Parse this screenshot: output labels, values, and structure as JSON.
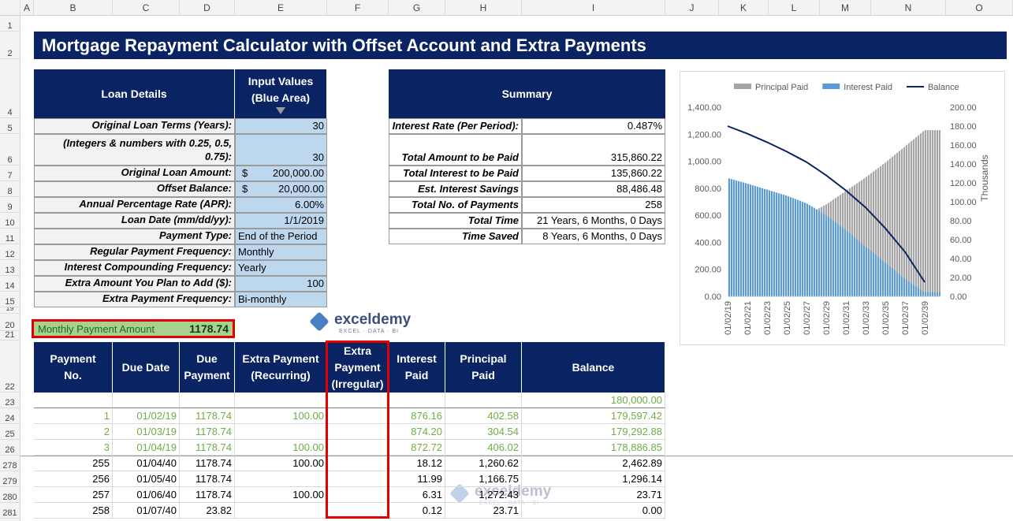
{
  "sheet": {
    "columns": [
      "A",
      "B",
      "C",
      "D",
      "E",
      "F",
      "G",
      "H",
      "I",
      "J",
      "K",
      "L",
      "M",
      "N",
      "O"
    ],
    "rows": [
      "1",
      "2",
      "4",
      "5",
      "6",
      "7",
      "8",
      "9",
      "10",
      "11",
      "12",
      "13",
      "14",
      "15",
      "19",
      "20",
      "21",
      "22",
      "23",
      "24",
      "25",
      "26",
      "278",
      "279",
      "280",
      "281"
    ]
  },
  "title": "Mortgage Repayment Calculator with Offset Account and Extra Payments",
  "loan_details": {
    "header": "Loan Details",
    "input_header": [
      "Input Values",
      "(Blue Area)"
    ],
    "rows": [
      {
        "label": "Original Loan Terms (Years):",
        "value": "30"
      },
      {
        "label": "(Integers & numbers with 0.25, 0.5, 0.75):",
        "value": "30"
      },
      {
        "label": "Original Loan Amount:",
        "currency": "$",
        "value": "200,000.00"
      },
      {
        "label": "Offset Balance:",
        "currency": "$",
        "value": "20,000.00"
      },
      {
        "label": "Annual Percentage Rate (APR):",
        "value": "6.00%"
      },
      {
        "label": "Loan Date (mm/dd/yy):",
        "value": "1/1/2019"
      },
      {
        "label": "Payment Type:",
        "value": "End of the Period"
      },
      {
        "label": "Regular Payment Frequency:",
        "value": "Monthly"
      },
      {
        "label": "Interest Compounding Frequency:",
        "value": "Yearly"
      },
      {
        "label": "Extra Amount You Plan to Add ($):",
        "value": "100"
      },
      {
        "label": "Extra Payment Frequency:",
        "value": "Bi-monthly"
      }
    ]
  },
  "summary": {
    "header": "Summary",
    "rows": [
      {
        "label": "Interest Rate (Per Period):",
        "value": "0.487%"
      },
      {
        "label": "Total Amount to be Paid",
        "value": "315,860.22"
      },
      {
        "label": "Total Interest to be Paid",
        "value": "135,860.22"
      },
      {
        "label": "Est. Interest Savings",
        "value": "88,486.48"
      },
      {
        "label": "Total No. of Payments",
        "value": "258"
      },
      {
        "label": "Total Time",
        "value": "21 Years, 6 Months, 0 Days"
      },
      {
        "label": "Time Saved",
        "value": "8 Years, 6 Months, 0 Days"
      }
    ]
  },
  "monthly_payment": {
    "label": "Monthly Payment Amount",
    "value": "1178.74"
  },
  "logo": {
    "name": "exceldemy",
    "tagline": "EXCEL · DATA · BI"
  },
  "payments": {
    "headers": [
      [
        "Payment",
        "No."
      ],
      [
        "Due Date"
      ],
      [
        "Due",
        "Payment"
      ],
      [
        "Extra Payment",
        "(Recurring)"
      ],
      [
        "Extra",
        "Payment",
        "(Irregular)"
      ],
      [
        "Interest",
        "Paid"
      ],
      [
        "Principal",
        "Paid"
      ],
      [
        "Balance"
      ]
    ],
    "rows": [
      [
        null,
        null,
        null,
        null,
        null,
        null,
        null,
        "180,000.00"
      ],
      [
        "1",
        "01/02/19",
        "1178.74",
        "100.00",
        null,
        "876.16",
        "402.58",
        "179,597.42"
      ],
      [
        "2",
        "01/03/19",
        "1178.74",
        null,
        null,
        "874.20",
        "304.54",
        "179,292.88"
      ],
      [
        "3",
        "01/04/19",
        "1178.74",
        "100.00",
        null,
        "872.72",
        "406.02",
        "178,886.85"
      ],
      [
        "255",
        "01/04/40",
        "1178.74",
        "100.00",
        null,
        "18.12",
        "1,260.62",
        "2,462.89"
      ],
      [
        "256",
        "01/05/40",
        "1178.74",
        null,
        null,
        "11.99",
        "1,166.75",
        "1,296.14"
      ],
      [
        "257",
        "01/06/40",
        "1178.74",
        "100.00",
        null,
        "6.31",
        "1,272.43",
        "23.71"
      ],
      [
        "258",
        "01/07/40",
        "23.82",
        null,
        null,
        "0.12",
        "23.71",
        "0.00"
      ]
    ]
  },
  "chart": {
    "type": "area-line",
    "categories": [
      "01/02/19",
      "01/02/21",
      "01/02/23",
      "01/02/25",
      "01/02/27",
      "01/02/29",
      "01/02/31",
      "01/02/33",
      "01/02/35",
      "01/02/37",
      "01/02/39"
    ],
    "series": [
      {
        "name": "Principal Paid",
        "color": "#a5a5a5",
        "kind": "area",
        "values": [
          403,
          440,
          490,
          540,
          600,
          680,
          780,
          880,
          990,
          1110,
          1230
        ]
      },
      {
        "name": "Interest Paid",
        "color": "#5b9bd5",
        "kind": "area",
        "values": [
          876,
          835,
          790,
          745,
          690,
          600,
          490,
          370,
          250,
          130,
          30
        ]
      },
      {
        "name": "Balance",
        "color": "#0a2463",
        "kind": "line",
        "axis": "y2",
        "values": [
          180,
          172,
          163,
          153,
          142,
          128,
          112,
          94,
          72,
          47,
          15
        ]
      }
    ],
    "ylim": [
      0,
      1400
    ],
    "yticks": [
      {
        "value": 0,
        "label": "0.00"
      },
      {
        "value": 200,
        "label": "200.00"
      },
      {
        "value": 400,
        "label": "400.00"
      },
      {
        "value": 600,
        "label": "600.00"
      },
      {
        "value": 800,
        "label": "800.00"
      },
      {
        "value": 1000,
        "label": "1,000.00"
      },
      {
        "value": 1200,
        "label": "1,200.00"
      },
      {
        "value": 1400,
        "label": "1,400.00"
      }
    ],
    "y2lim": [
      0,
      200
    ],
    "y2ticks": [
      {
        "value": 0,
        "label": "0.00"
      },
      {
        "value": 20,
        "label": "20.00"
      },
      {
        "value": 40,
        "label": "40.00"
      },
      {
        "value": 60,
        "label": "60.00"
      },
      {
        "value": 80,
        "label": "80.00"
      },
      {
        "value": 100,
        "label": "100.00"
      },
      {
        "value": 120,
        "label": "120.00"
      },
      {
        "value": 140,
        "label": "140.00"
      },
      {
        "value": 160,
        "label": "160.00"
      },
      {
        "value": 180,
        "label": "180.00"
      },
      {
        "value": 200,
        "label": "200.00"
      }
    ],
    "y2label": "Thousands",
    "legend": "top"
  }
}
